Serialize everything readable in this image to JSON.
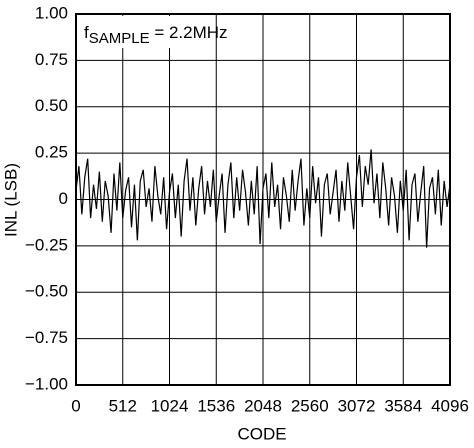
{
  "chart_data": {
    "type": "line",
    "xlabel": "CODE",
    "ylabel": "INL (LSB)",
    "annotation": {
      "text": "f",
      "subscript": "SAMPLE",
      "suffix": " = 2.2MHz"
    },
    "color": "#000000",
    "grid": true,
    "xlim": [
      0,
      4096
    ],
    "xticks": [
      0,
      512,
      1024,
      1536,
      2048,
      2560,
      3072,
      3584,
      4096
    ],
    "ylim": [
      -1,
      1
    ],
    "yticks": [
      {
        "value": 1,
        "label": "1.00"
      },
      {
        "value": 0.75,
        "label": "0.75"
      },
      {
        "value": 0.5,
        "label": "0.50"
      },
      {
        "value": 0.25,
        "label": "0.25"
      },
      0,
      {
        "value": -0.25,
        "label": "−0.25"
      },
      {
        "value": -0.5,
        "label": "−0.50"
      },
      {
        "value": -0.75,
        "label": "−0.75"
      },
      {
        "value": -1,
        "label": "−1.00"
      }
    ],
    "x": [
      0,
      32,
      64,
      96,
      128,
      160,
      192,
      224,
      256,
      288,
      320,
      352,
      384,
      416,
      448,
      480,
      512,
      544,
      576,
      608,
      640,
      672,
      704,
      736,
      768,
      800,
      832,
      864,
      896,
      928,
      960,
      992,
      1024,
      1056,
      1088,
      1120,
      1152,
      1184,
      1216,
      1248,
      1280,
      1312,
      1344,
      1376,
      1408,
      1440,
      1472,
      1504,
      1536,
      1568,
      1600,
      1632,
      1664,
      1696,
      1728,
      1760,
      1792,
      1824,
      1856,
      1888,
      1920,
      1952,
      1984,
      2016,
      2048,
      2080,
      2112,
      2144,
      2176,
      2208,
      2240,
      2272,
      2304,
      2336,
      2368,
      2400,
      2432,
      2464,
      2496,
      2528,
      2560,
      2592,
      2624,
      2656,
      2688,
      2720,
      2752,
      2784,
      2816,
      2848,
      2880,
      2912,
      2944,
      2976,
      3008,
      3040,
      3072,
      3104,
      3136,
      3168,
      3200,
      3232,
      3264,
      3296,
      3328,
      3360,
      3392,
      3424,
      3456,
      3488,
      3520,
      3552,
      3584,
      3616,
      3648,
      3680,
      3712,
      3744,
      3776,
      3808,
      3840,
      3872,
      3904,
      3936,
      3968,
      4000,
      4032,
      4064,
      4096
    ],
    "values": [
      0.05,
      0.18,
      -0.08,
      0.12,
      0.22,
      -0.1,
      0.08,
      -0.05,
      0.15,
      -0.12,
      0.1,
      0.02,
      -0.18,
      0.14,
      -0.06,
      0.2,
      -0.1,
      0.05,
      0.12,
      -0.15,
      0.08,
      -0.22,
      0.1,
      0.16,
      -0.04,
      0.06,
      -0.12,
      0.18,
      0.02,
      -0.08,
      0.12,
      -0.16,
      0.04,
      0.14,
      -0.1,
      0.08,
      -0.2,
      0.1,
      0.22,
      -0.06,
      0.12,
      -0.14,
      0.06,
      0.18,
      -0.08,
      0.1,
      -0.04,
      0.16,
      -0.12,
      0.02,
      0.14,
      -0.18,
      0.08,
      0.2,
      -0.1,
      0.12,
      -0.06,
      0.16,
      0.04,
      -0.14,
      0.1,
      -0.08,
      0.18,
      -0.24,
      0.06,
      0.14,
      -0.1,
      0.2,
      -0.04,
      0.08,
      -0.16,
      0.12,
      0.02,
      -0.12,
      0.16,
      -0.06,
      0.1,
      0.22,
      -0.14,
      0.06,
      -0.1,
      0.18,
      -0.02,
      0.12,
      -0.2,
      0.08,
      0.14,
      -0.08,
      0.04,
      0.16,
      -0.12,
      0.1,
      -0.06,
      0.2,
      0.02,
      -0.16,
      0.12,
      0.24,
      -0.04,
      0.18,
      0.08,
      0.27,
      -0.02,
      0.14,
      -0.1,
      0.2,
      0.06,
      -0.14,
      0.12,
      0.02,
      -0.18,
      0.1,
      -0.06,
      0.16,
      -0.22,
      0.08,
      0.14,
      -0.12,
      0.04,
      0.18,
      -0.26,
      0.06,
      0.12,
      -0.08,
      0.16,
      -0.14,
      0.1,
      -0.04,
      0.08
    ]
  }
}
